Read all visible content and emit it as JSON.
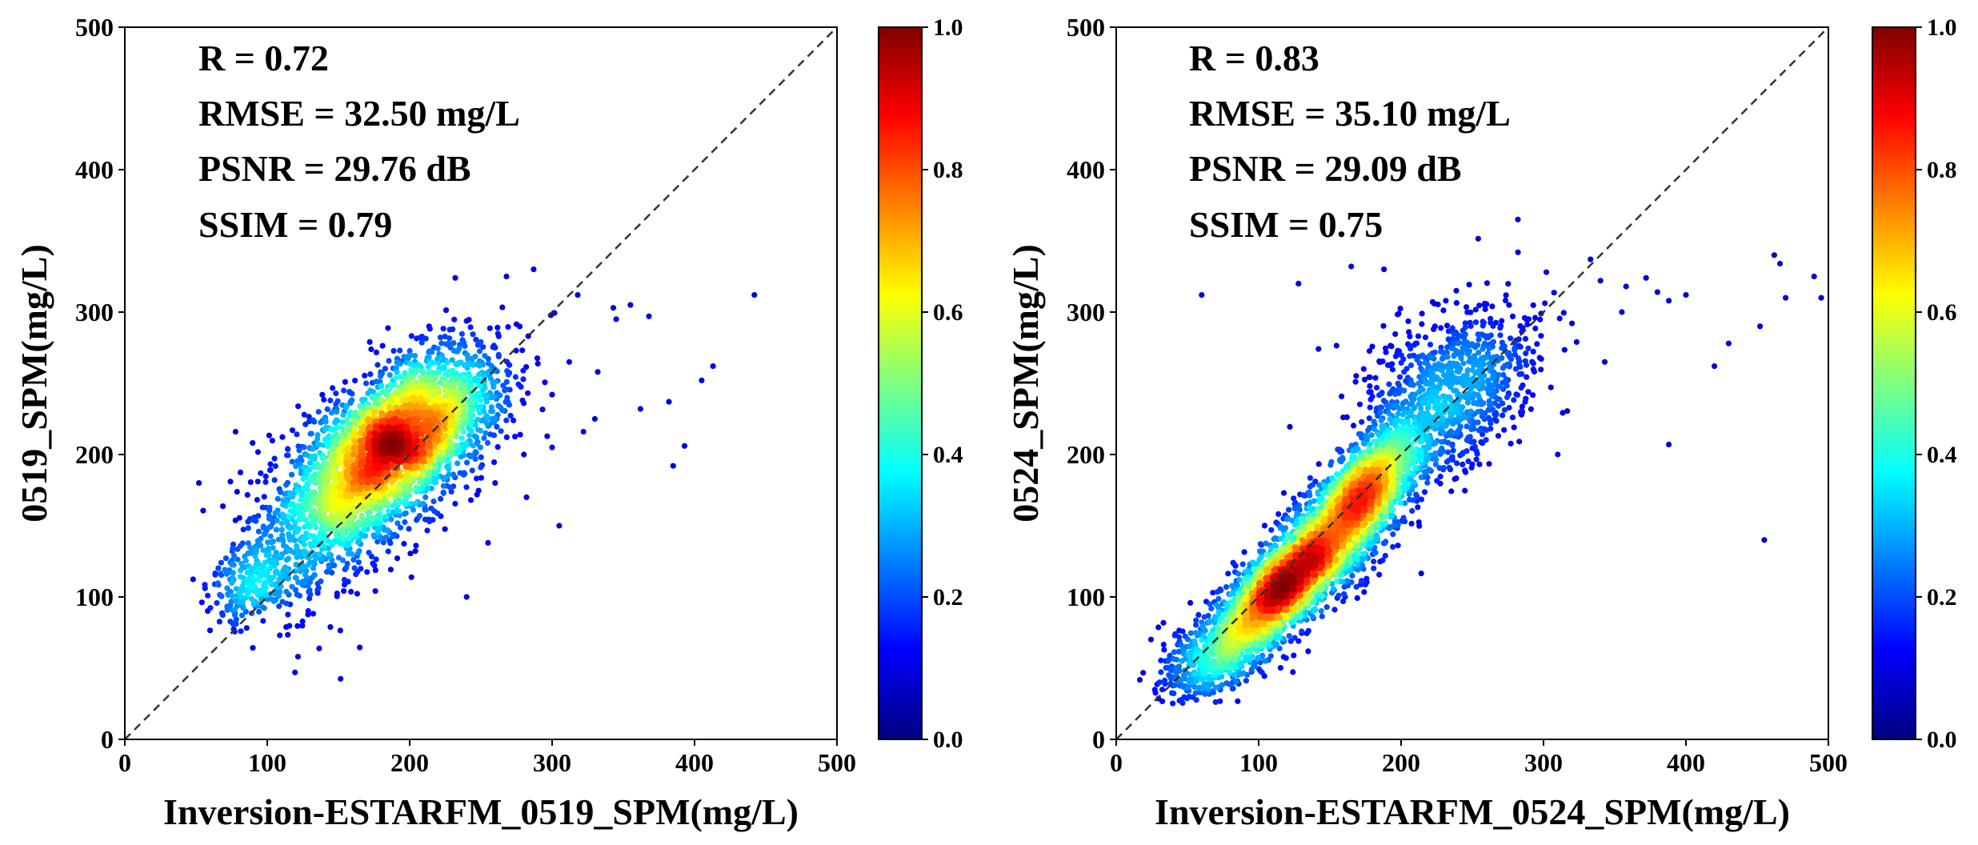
{
  "chart_data": [
    {
      "type": "scatter",
      "subtype": "density-colored",
      "xlabel": "Inversion-ESTARFM_0519_SPM(mg/L)",
      "ylabel": "0519_SPM(mg/L)",
      "xlim": [
        0,
        500
      ],
      "ylim": [
        0,
        500
      ],
      "xticks": [
        "0",
        "100",
        "200",
        "300",
        "400",
        "500"
      ],
      "yticks": [
        "0",
        "100",
        "200",
        "300",
        "400",
        "500"
      ],
      "reference_line": "y = x (dashed)",
      "annotations": [
        "R = 0.72",
        "RMSE = 32.50 mg/L",
        "PSNR = 29.76 dB",
        "SSIM = 0.79"
      ],
      "colorbar": {
        "range": [
          0.0,
          1.0
        ],
        "ticks": [
          "0.0",
          "0.2",
          "0.4",
          "0.6",
          "0.8",
          "1.0"
        ],
        "colormap": "jet"
      },
      "clusters": [
        {
          "cx": 195,
          "cy": 212,
          "sx": 34,
          "sy": 30,
          "rho": 0.55,
          "n": 2600
        },
        {
          "cx": 150,
          "cy": 165,
          "sx": 36,
          "sy": 38,
          "rho": 0.55,
          "n": 1000
        },
        {
          "cx": 90,
          "cy": 110,
          "sx": 16,
          "sy": 14,
          "rho": 0.4,
          "n": 180
        }
      ],
      "outliers": [
        {
          "x": 52,
          "y": 180
        },
        {
          "x": 255,
          "y": 138
        },
        {
          "x": 305,
          "y": 150
        },
        {
          "x": 300,
          "y": 242
        },
        {
          "x": 330,
          "y": 225
        },
        {
          "x": 332,
          "y": 258
        },
        {
          "x": 343,
          "y": 303
        },
        {
          "x": 345,
          "y": 295
        },
        {
          "x": 355,
          "y": 305
        },
        {
          "x": 362,
          "y": 232
        },
        {
          "x": 368,
          "y": 297
        },
        {
          "x": 382,
          "y": 237
        },
        {
          "x": 385,
          "y": 192
        },
        {
          "x": 393,
          "y": 206
        },
        {
          "x": 405,
          "y": 252
        },
        {
          "x": 413,
          "y": 262
        },
        {
          "x": 442,
          "y": 312
        },
        {
          "x": 232,
          "y": 324
        },
        {
          "x": 268,
          "y": 325
        },
        {
          "x": 287,
          "y": 330
        },
        {
          "x": 240,
          "y": 100
        },
        {
          "x": 312,
          "y": 265
        },
        {
          "x": 318,
          "y": 312
        },
        {
          "x": 300,
          "y": 205
        },
        {
          "x": 282,
          "y": 170
        },
        {
          "x": 260,
          "y": 180
        },
        {
          "x": 322,
          "y": 216
        }
      ]
    },
    {
      "type": "scatter",
      "subtype": "density-colored",
      "xlabel": "Inversion-ESTARFM_0524_SPM(mg/L)",
      "ylabel": "0524_SPM(mg/L)",
      "xlim": [
        0,
        500
      ],
      "ylim": [
        0,
        500
      ],
      "xticks": [
        "0",
        "100",
        "200",
        "300",
        "400",
        "500"
      ],
      "yticks": [
        "0",
        "100",
        "200",
        "300",
        "400",
        "500"
      ],
      "reference_line": "y = x (dashed)",
      "annotations": [
        "R = 0.83",
        "RMSE = 35.10 mg/L",
        "PSNR = 29.09 dB",
        "SSIM = 0.75"
      ],
      "colorbar": {
        "range": [
          0.0,
          1.0
        ],
        "ticks": [
          "0.0",
          "0.2",
          "0.4",
          "0.6",
          "0.8",
          "1.0"
        ],
        "colormap": "jet"
      },
      "clusters": [
        {
          "cx": 115,
          "cy": 105,
          "sx": 24,
          "sy": 25,
          "rho": 0.8,
          "n": 1800
        },
        {
          "cx": 172,
          "cy": 172,
          "sx": 20,
          "sy": 26,
          "rho": 0.7,
          "n": 1300
        },
        {
          "cx": 148,
          "cy": 140,
          "sx": 40,
          "sy": 42,
          "rho": 0.85,
          "n": 1600
        },
        {
          "cx": 235,
          "cy": 245,
          "sx": 30,
          "sy": 30,
          "rho": 0.4,
          "n": 900
        },
        {
          "cx": 70,
          "cy": 60,
          "sx": 22,
          "sy": 18,
          "rho": 0.5,
          "n": 450
        }
      ],
      "outliers": [
        {
          "x": 60,
          "y": 312
        },
        {
          "x": 128,
          "y": 320
        },
        {
          "x": 165,
          "y": 332
        },
        {
          "x": 188,
          "y": 330
        },
        {
          "x": 282,
          "y": 365
        },
        {
          "x": 302,
          "y": 328
        },
        {
          "x": 333,
          "y": 337
        },
        {
          "x": 340,
          "y": 322
        },
        {
          "x": 358,
          "y": 318
        },
        {
          "x": 372,
          "y": 324
        },
        {
          "x": 380,
          "y": 314
        },
        {
          "x": 388,
          "y": 308
        },
        {
          "x": 400,
          "y": 312
        },
        {
          "x": 388,
          "y": 207
        },
        {
          "x": 420,
          "y": 262
        },
        {
          "x": 430,
          "y": 278
        },
        {
          "x": 452,
          "y": 290
        },
        {
          "x": 455,
          "y": 140
        },
        {
          "x": 462,
          "y": 340
        },
        {
          "x": 466,
          "y": 334
        },
        {
          "x": 470,
          "y": 310
        },
        {
          "x": 490,
          "y": 325
        },
        {
          "x": 495,
          "y": 310
        },
        {
          "x": 355,
          "y": 300
        },
        {
          "x": 320,
          "y": 292
        },
        {
          "x": 343,
          "y": 265
        },
        {
          "x": 310,
          "y": 200
        }
      ]
    }
  ]
}
